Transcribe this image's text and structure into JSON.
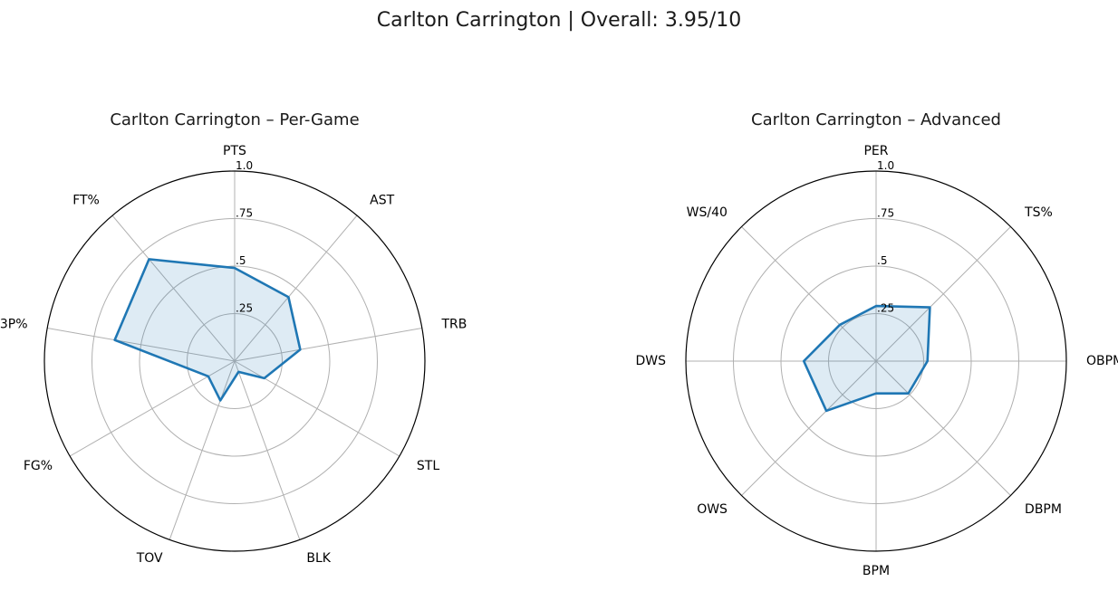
{
  "figure": {
    "suptitle": "Carlton Carrington | Overall: 3.95/10"
  },
  "chart_data": [
    {
      "type": "radar",
      "title": "Carlton Carrington – Per-Game",
      "categories": [
        "PTS",
        "AST",
        "TRB",
        "STL",
        "BLK",
        "TOV",
        "FG%",
        "3P%",
        "FT%"
      ],
      "values": [
        0.49,
        0.44,
        0.35,
        0.18,
        0.06,
        0.22,
        0.16,
        0.64,
        0.7
      ],
      "rlim": [
        0,
        1
      ],
      "rticks": [
        0.25,
        0.5,
        0.75,
        1.0
      ],
      "rtick_labels": [
        ".25",
        ".5",
        ".75",
        "1.0"
      ],
      "grid": true,
      "color": "#1f77b4"
    },
    {
      "type": "radar",
      "title": "Carlton Carrington – Advanced",
      "categories": [
        "PER",
        "TS%",
        "OBPM",
        "DBPM",
        "BPM",
        "OWS",
        "DWS",
        "WS/40"
      ],
      "values": [
        0.29,
        0.4,
        0.27,
        0.24,
        0.17,
        0.37,
        0.38,
        0.27
      ],
      "rlim": [
        0,
        1
      ],
      "rticks": [
        0.25,
        0.5,
        0.75,
        1.0
      ],
      "rtick_labels": [
        ".25",
        ".5",
        ".75",
        "1.0"
      ],
      "grid": true,
      "color": "#1f77b4"
    }
  ]
}
